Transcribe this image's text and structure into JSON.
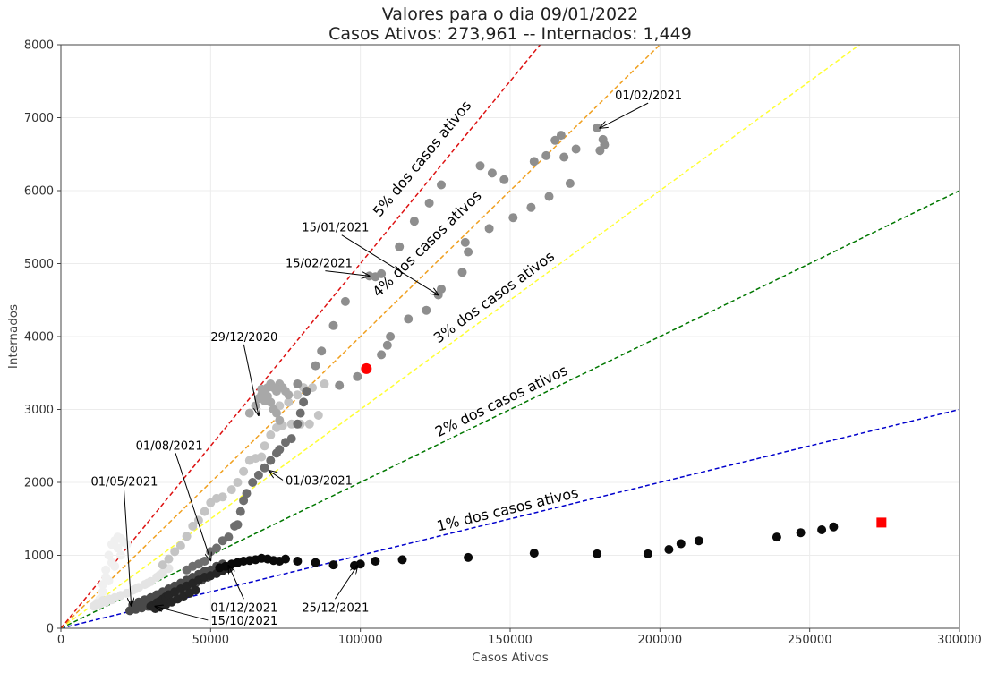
{
  "chart_data": {
    "type": "scatter",
    "title": "Valores para o dia 09/01/2022",
    "subtitle": "Casos Ativos: 273,961 -- Internados: 1,449",
    "xlabel": "Casos Ativos",
    "ylabel": "Internados",
    "xlim": [
      0,
      300000
    ],
    "ylim": [
      0,
      8000
    ],
    "x_ticks": [
      0,
      50000,
      100000,
      150000,
      200000,
      250000,
      300000
    ],
    "y_ticks": [
      0,
      1000,
      2000,
      3000,
      4000,
      5000,
      6000,
      7000,
      8000
    ],
    "grid": true,
    "reference_lines": [
      {
        "label": "1% dos casos ativos",
        "slope": 0.01,
        "color": "#0000cc",
        "label_at": [
          126000,
          1330
        ]
      },
      {
        "label": "2% dos casos ativos",
        "slope": 0.02,
        "color": "#007700",
        "label_at": [
          126000,
          2620
        ]
      },
      {
        "label": "3% dos casos ativos",
        "slope": 0.03,
        "color": "#ffff33",
        "label_at": [
          126000,
          3900
        ]
      },
      {
        "label": "4% dos casos ativos",
        "slope": 0.04,
        "color": "#f0a020",
        "label_at": [
          106000,
          4530
        ]
      },
      {
        "label": "5% dos casos ativos",
        "slope": 0.05,
        "color": "#dd1111",
        "label_at": [
          106500,
          5630
        ]
      }
    ],
    "series": [
      {
        "color": "#f0f0f0",
        "points": [
          [
            13000,
            400
          ],
          [
            14000,
            600
          ],
          [
            15000,
            800
          ],
          [
            16000,
            1000
          ],
          [
            17000,
            1150
          ],
          [
            18000,
            1200
          ],
          [
            19000,
            1250
          ],
          [
            20000,
            1230
          ],
          [
            21000,
            1180
          ],
          [
            22000,
            1150
          ],
          [
            20000,
            1000
          ],
          [
            18000,
            850
          ],
          [
            16000,
            650
          ],
          [
            14000,
            500
          ],
          [
            12000,
            350
          ],
          [
            17000,
            900
          ],
          [
            19000,
            1100
          ],
          [
            15000,
            700
          ]
        ]
      },
      {
        "color": "#e4e4e4",
        "points": [
          [
            11000,
            300
          ],
          [
            12000,
            340
          ],
          [
            14000,
            380
          ],
          [
            16000,
            400
          ],
          [
            18000,
            420
          ],
          [
            20000,
            450
          ],
          [
            22000,
            480
          ],
          [
            24000,
            520
          ],
          [
            26000,
            560
          ],
          [
            28000,
            600
          ],
          [
            30000,
            640
          ],
          [
            32000,
            700
          ],
          [
            34000,
            760
          ],
          [
            36000,
            820
          ],
          [
            13000,
            330
          ],
          [
            15000,
            360
          ],
          [
            17000,
            390
          ],
          [
            25000,
            540
          ],
          [
            29000,
            620
          ],
          [
            33000,
            730
          ]
        ]
      },
      {
        "color": "#c4c4c4",
        "points": [
          [
            38000,
            1050
          ],
          [
            40000,
            1130
          ],
          [
            42000,
            1260
          ],
          [
            44000,
            1400
          ],
          [
            46000,
            1480
          ],
          [
            48000,
            1600
          ],
          [
            50000,
            1720
          ],
          [
            52000,
            1780
          ],
          [
            54000,
            1800
          ],
          [
            57000,
            1900
          ],
          [
            59000,
            2000
          ],
          [
            61000,
            2150
          ],
          [
            63000,
            2300
          ],
          [
            65000,
            2330
          ],
          [
            67000,
            2350
          ],
          [
            68000,
            2500
          ],
          [
            70000,
            2650
          ],
          [
            72000,
            2750
          ],
          [
            74000,
            2780
          ],
          [
            77000,
            2800
          ],
          [
            80000,
            2800
          ],
          [
            83000,
            2800
          ],
          [
            86000,
            2920
          ],
          [
            88000,
            3350
          ],
          [
            84000,
            3300
          ],
          [
            81000,
            3300
          ],
          [
            79000,
            3200
          ],
          [
            76000,
            3100
          ],
          [
            73000,
            3050
          ],
          [
            36000,
            950
          ],
          [
            34000,
            870
          ]
        ]
      },
      {
        "color": "#a8a8a8",
        "points": [
          [
            63000,
            2950
          ],
          [
            65000,
            3050
          ],
          [
            66000,
            3150
          ],
          [
            67000,
            3200
          ],
          [
            68000,
            3250
          ],
          [
            69000,
            3300
          ],
          [
            70000,
            3350
          ],
          [
            71000,
            3300
          ],
          [
            72000,
            3250
          ],
          [
            73000,
            3350
          ],
          [
            74000,
            3300
          ],
          [
            75000,
            3250
          ],
          [
            76000,
            3200
          ],
          [
            70000,
            3100
          ],
          [
            71000,
            3000
          ],
          [
            72000,
            2950
          ],
          [
            73000,
            2850
          ],
          [
            69000,
            3180
          ],
          [
            68000,
            3120
          ],
          [
            67000,
            3280
          ]
        ]
      },
      {
        "color": "#8e8e8e",
        "points": [
          [
            79000,
            3350
          ],
          [
            82000,
            3250
          ],
          [
            85000,
            3600
          ],
          [
            87000,
            3800
          ],
          [
            91000,
            4150
          ],
          [
            95000,
            4480
          ],
          [
            103000,
            4830
          ],
          [
            105000,
            4820
          ],
          [
            107000,
            4860
          ],
          [
            113000,
            5230
          ],
          [
            118000,
            5580
          ],
          [
            123000,
            5830
          ],
          [
            127000,
            6080
          ],
          [
            140000,
            6340
          ],
          [
            144000,
            6240
          ],
          [
            148000,
            6150
          ],
          [
            158000,
            6400
          ],
          [
            162000,
            6480
          ],
          [
            165000,
            6690
          ],
          [
            167000,
            6760
          ],
          [
            168000,
            6460
          ],
          [
            170000,
            6100
          ],
          [
            172000,
            6570
          ],
          [
            179000,
            6860
          ],
          [
            180000,
            6550
          ],
          [
            181000,
            6700
          ],
          [
            181500,
            6630
          ],
          [
            136000,
            5160
          ],
          [
            135000,
            5290
          ],
          [
            134000,
            4880
          ],
          [
            127000,
            4650
          ],
          [
            126000,
            4570
          ],
          [
            122000,
            4360
          ],
          [
            116000,
            4240
          ],
          [
            110000,
            4000
          ],
          [
            109000,
            3880
          ],
          [
            107000,
            3750
          ],
          [
            99000,
            3450
          ],
          [
            93000,
            3330
          ],
          [
            143000,
            5480
          ],
          [
            151000,
            5630
          ],
          [
            157000,
            5770
          ],
          [
            163000,
            5920
          ]
        ]
      },
      {
        "color": "#6e6e6e",
        "points": [
          [
            50000,
            1050
          ],
          [
            52000,
            1100
          ],
          [
            54000,
            1200
          ],
          [
            56000,
            1250
          ],
          [
            58000,
            1400
          ],
          [
            59000,
            1420
          ],
          [
            60000,
            1600
          ],
          [
            61000,
            1750
          ],
          [
            62000,
            1850
          ],
          [
            64000,
            2000
          ],
          [
            66000,
            2100
          ],
          [
            68000,
            2200
          ],
          [
            70000,
            2300
          ],
          [
            72000,
            2400
          ],
          [
            73000,
            2450
          ],
          [
            75000,
            2550
          ],
          [
            77000,
            2600
          ],
          [
            79000,
            2800
          ],
          [
            80000,
            2950
          ],
          [
            81000,
            3100
          ],
          [
            82000,
            3250
          ],
          [
            42000,
            800
          ],
          [
            44000,
            850
          ],
          [
            46000,
            880
          ],
          [
            48000,
            920
          ]
        ]
      },
      {
        "color": "#4a4a4a",
        "points": [
          [
            24000,
            320
          ],
          [
            26000,
            360
          ],
          [
            28000,
            390
          ],
          [
            30000,
            420
          ],
          [
            32000,
            460
          ],
          [
            34000,
            500
          ],
          [
            36000,
            540
          ],
          [
            38000,
            580
          ],
          [
            40000,
            620
          ],
          [
            42000,
            660
          ],
          [
            44000,
            700
          ],
          [
            46000,
            740
          ],
          [
            48000,
            780
          ],
          [
            50000,
            800
          ],
          [
            52000,
            850
          ],
          [
            54000,
            880
          ],
          [
            27000,
            280
          ],
          [
            29000,
            300
          ],
          [
            31000,
            340
          ],
          [
            33000,
            380
          ],
          [
            35000,
            420
          ],
          [
            37000,
            460
          ],
          [
            39000,
            500
          ],
          [
            41000,
            540
          ],
          [
            43000,
            580
          ],
          [
            45000,
            620
          ],
          [
            47000,
            660
          ],
          [
            49000,
            700
          ],
          [
            23000,
            240
          ],
          [
            25000,
            260
          ]
        ]
      },
      {
        "color": "#252525",
        "points": [
          [
            30000,
            300
          ],
          [
            31000,
            320
          ],
          [
            32000,
            350
          ],
          [
            33000,
            370
          ],
          [
            34000,
            400
          ],
          [
            35000,
            430
          ],
          [
            36000,
            460
          ],
          [
            38000,
            500
          ],
          [
            40000,
            540
          ],
          [
            42000,
            580
          ],
          [
            44000,
            620
          ],
          [
            46000,
            660
          ],
          [
            48000,
            700
          ],
          [
            50000,
            720
          ],
          [
            52000,
            750
          ],
          [
            54000,
            790
          ],
          [
            56000,
            820
          ],
          [
            31500,
            270
          ],
          [
            33000,
            290
          ],
          [
            35000,
            320
          ],
          [
            37000,
            360
          ],
          [
            39000,
            400
          ],
          [
            41000,
            440
          ],
          [
            43000,
            480
          ],
          [
            45000,
            520
          ]
        ]
      },
      {
        "color": "#0a0a0a",
        "points": [
          [
            55000,
            850
          ],
          [
            57000,
            880
          ],
          [
            59000,
            900
          ],
          [
            61000,
            920
          ],
          [
            63000,
            930
          ],
          [
            65000,
            940
          ],
          [
            67000,
            960
          ],
          [
            69000,
            950
          ],
          [
            71000,
            930
          ],
          [
            73000,
            920
          ],
          [
            75000,
            950
          ],
          [
            79000,
            920
          ],
          [
            85000,
            900
          ],
          [
            91000,
            870
          ],
          [
            98000,
            860
          ],
          [
            100000,
            880
          ],
          [
            105000,
            920
          ],
          [
            114000,
            940
          ],
          [
            136000,
            970
          ],
          [
            158000,
            1030
          ],
          [
            179000,
            1020
          ],
          [
            196000,
            1020
          ],
          [
            203000,
            1080
          ],
          [
            207000,
            1160
          ],
          [
            213000,
            1200
          ],
          [
            239000,
            1250
          ],
          [
            247000,
            1310
          ],
          [
            254000,
            1350
          ],
          [
            258000,
            1390
          ],
          [
            53000,
            830
          ]
        ]
      }
    ],
    "highlights": [
      {
        "shape": "circle",
        "color": "#ff0000",
        "x": 102000,
        "y": 3560
      },
      {
        "shape": "square",
        "color": "#ff0000",
        "x": 273961,
        "y": 1449
      }
    ],
    "annotations": [
      {
        "label": "01/02/2021",
        "text_at": [
          185000,
          7250
        ],
        "point": [
          180000,
          6860
        ]
      },
      {
        "label": "15/01/2021",
        "text_at": [
          80500,
          5440
        ],
        "point": [
          126000,
          4570
        ]
      },
      {
        "label": "15/02/2021",
        "text_at": [
          75000,
          4950
        ],
        "point": [
          103000,
          4830
        ]
      },
      {
        "label": "29/12/2020",
        "text_at": [
          50000,
          3940
        ],
        "point": [
          66000,
          2920
        ]
      },
      {
        "label": "01/08/2021",
        "text_at": [
          25000,
          2450
        ],
        "point": [
          50000,
          930
        ]
      },
      {
        "label": "01/05/2021",
        "text_at": [
          10000,
          1960
        ],
        "point": [
          23500,
          310
        ]
      },
      {
        "label": "01/03/2021",
        "text_at": [
          75000,
          1970
        ],
        "point": [
          69500,
          2160
        ]
      },
      {
        "label": "01/12/2021",
        "text_at": [
          50000,
          230
        ],
        "point": [
          56000,
          860
        ]
      },
      {
        "label": "15/10/2021",
        "text_at": [
          50000,
          50
        ],
        "point": [
          31500,
          300
        ]
      },
      {
        "label": "25/12/2021",
        "text_at": [
          80500,
          230
        ],
        "point": [
          99000,
          860
        ]
      }
    ]
  }
}
